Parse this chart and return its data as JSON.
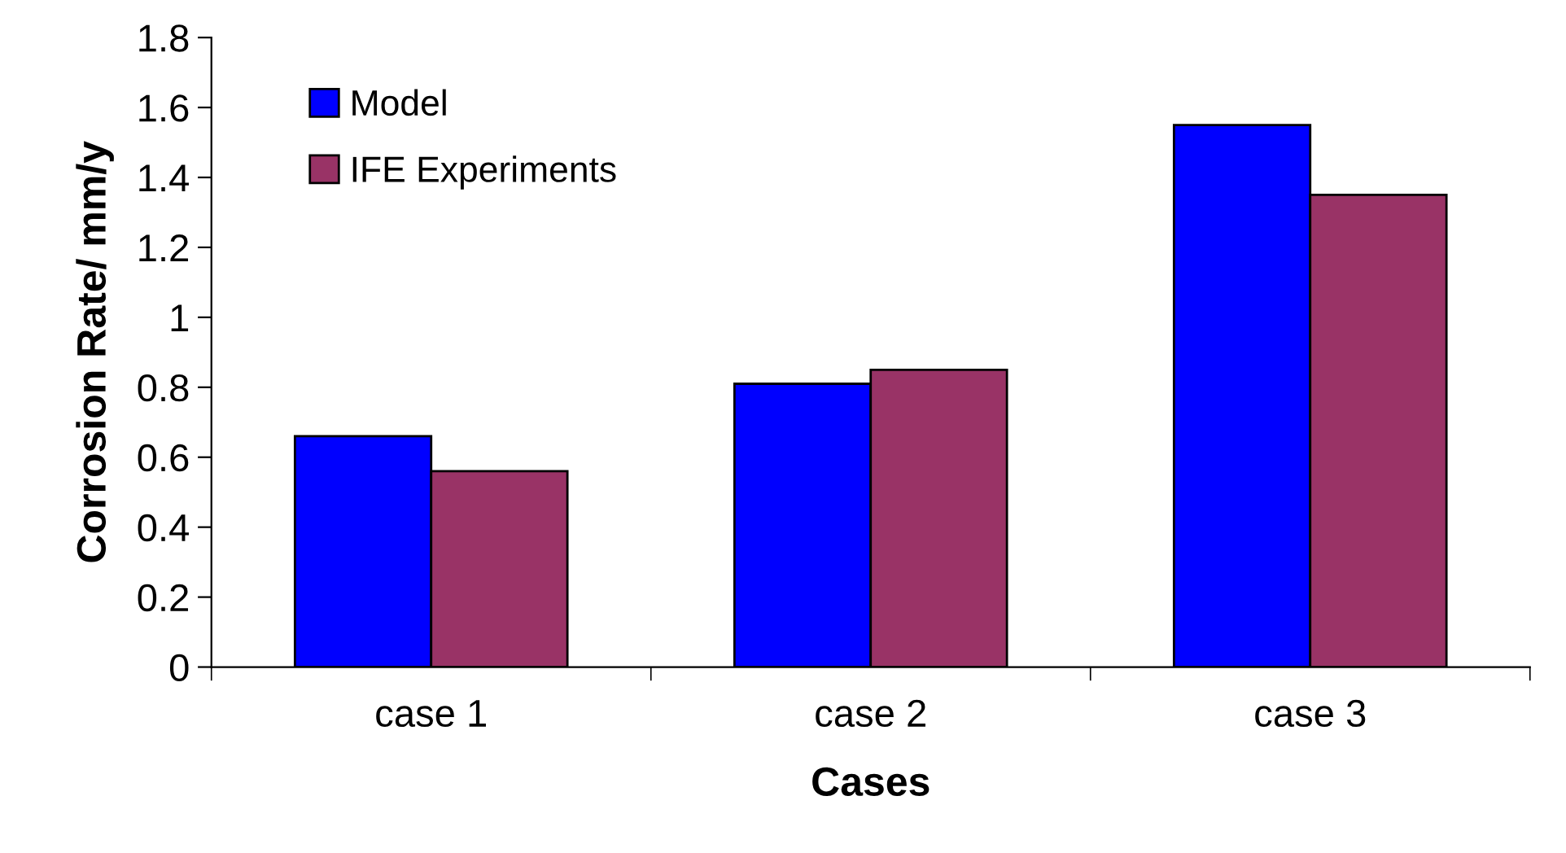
{
  "chart_data": {
    "type": "bar",
    "xlabel": "Cases",
    "ylabel": "Corrosion Rate/ mm/y",
    "categories": [
      "case 1",
      "case 2",
      "case 3"
    ],
    "series": [
      {
        "name": "Model",
        "color": "#0000ff",
        "values": [
          0.66,
          0.81,
          1.55
        ]
      },
      {
        "name": "IFE Experiments",
        "color": "#993366",
        "values": [
          0.56,
          0.85,
          1.35
        ]
      }
    ],
    "ylim": [
      0,
      1.8
    ],
    "yticks": [
      0,
      0.2,
      0.4,
      0.6,
      0.8,
      1,
      1.2,
      1.4,
      1.6,
      1.8
    ],
    "grid": false,
    "legend": "top left"
  }
}
